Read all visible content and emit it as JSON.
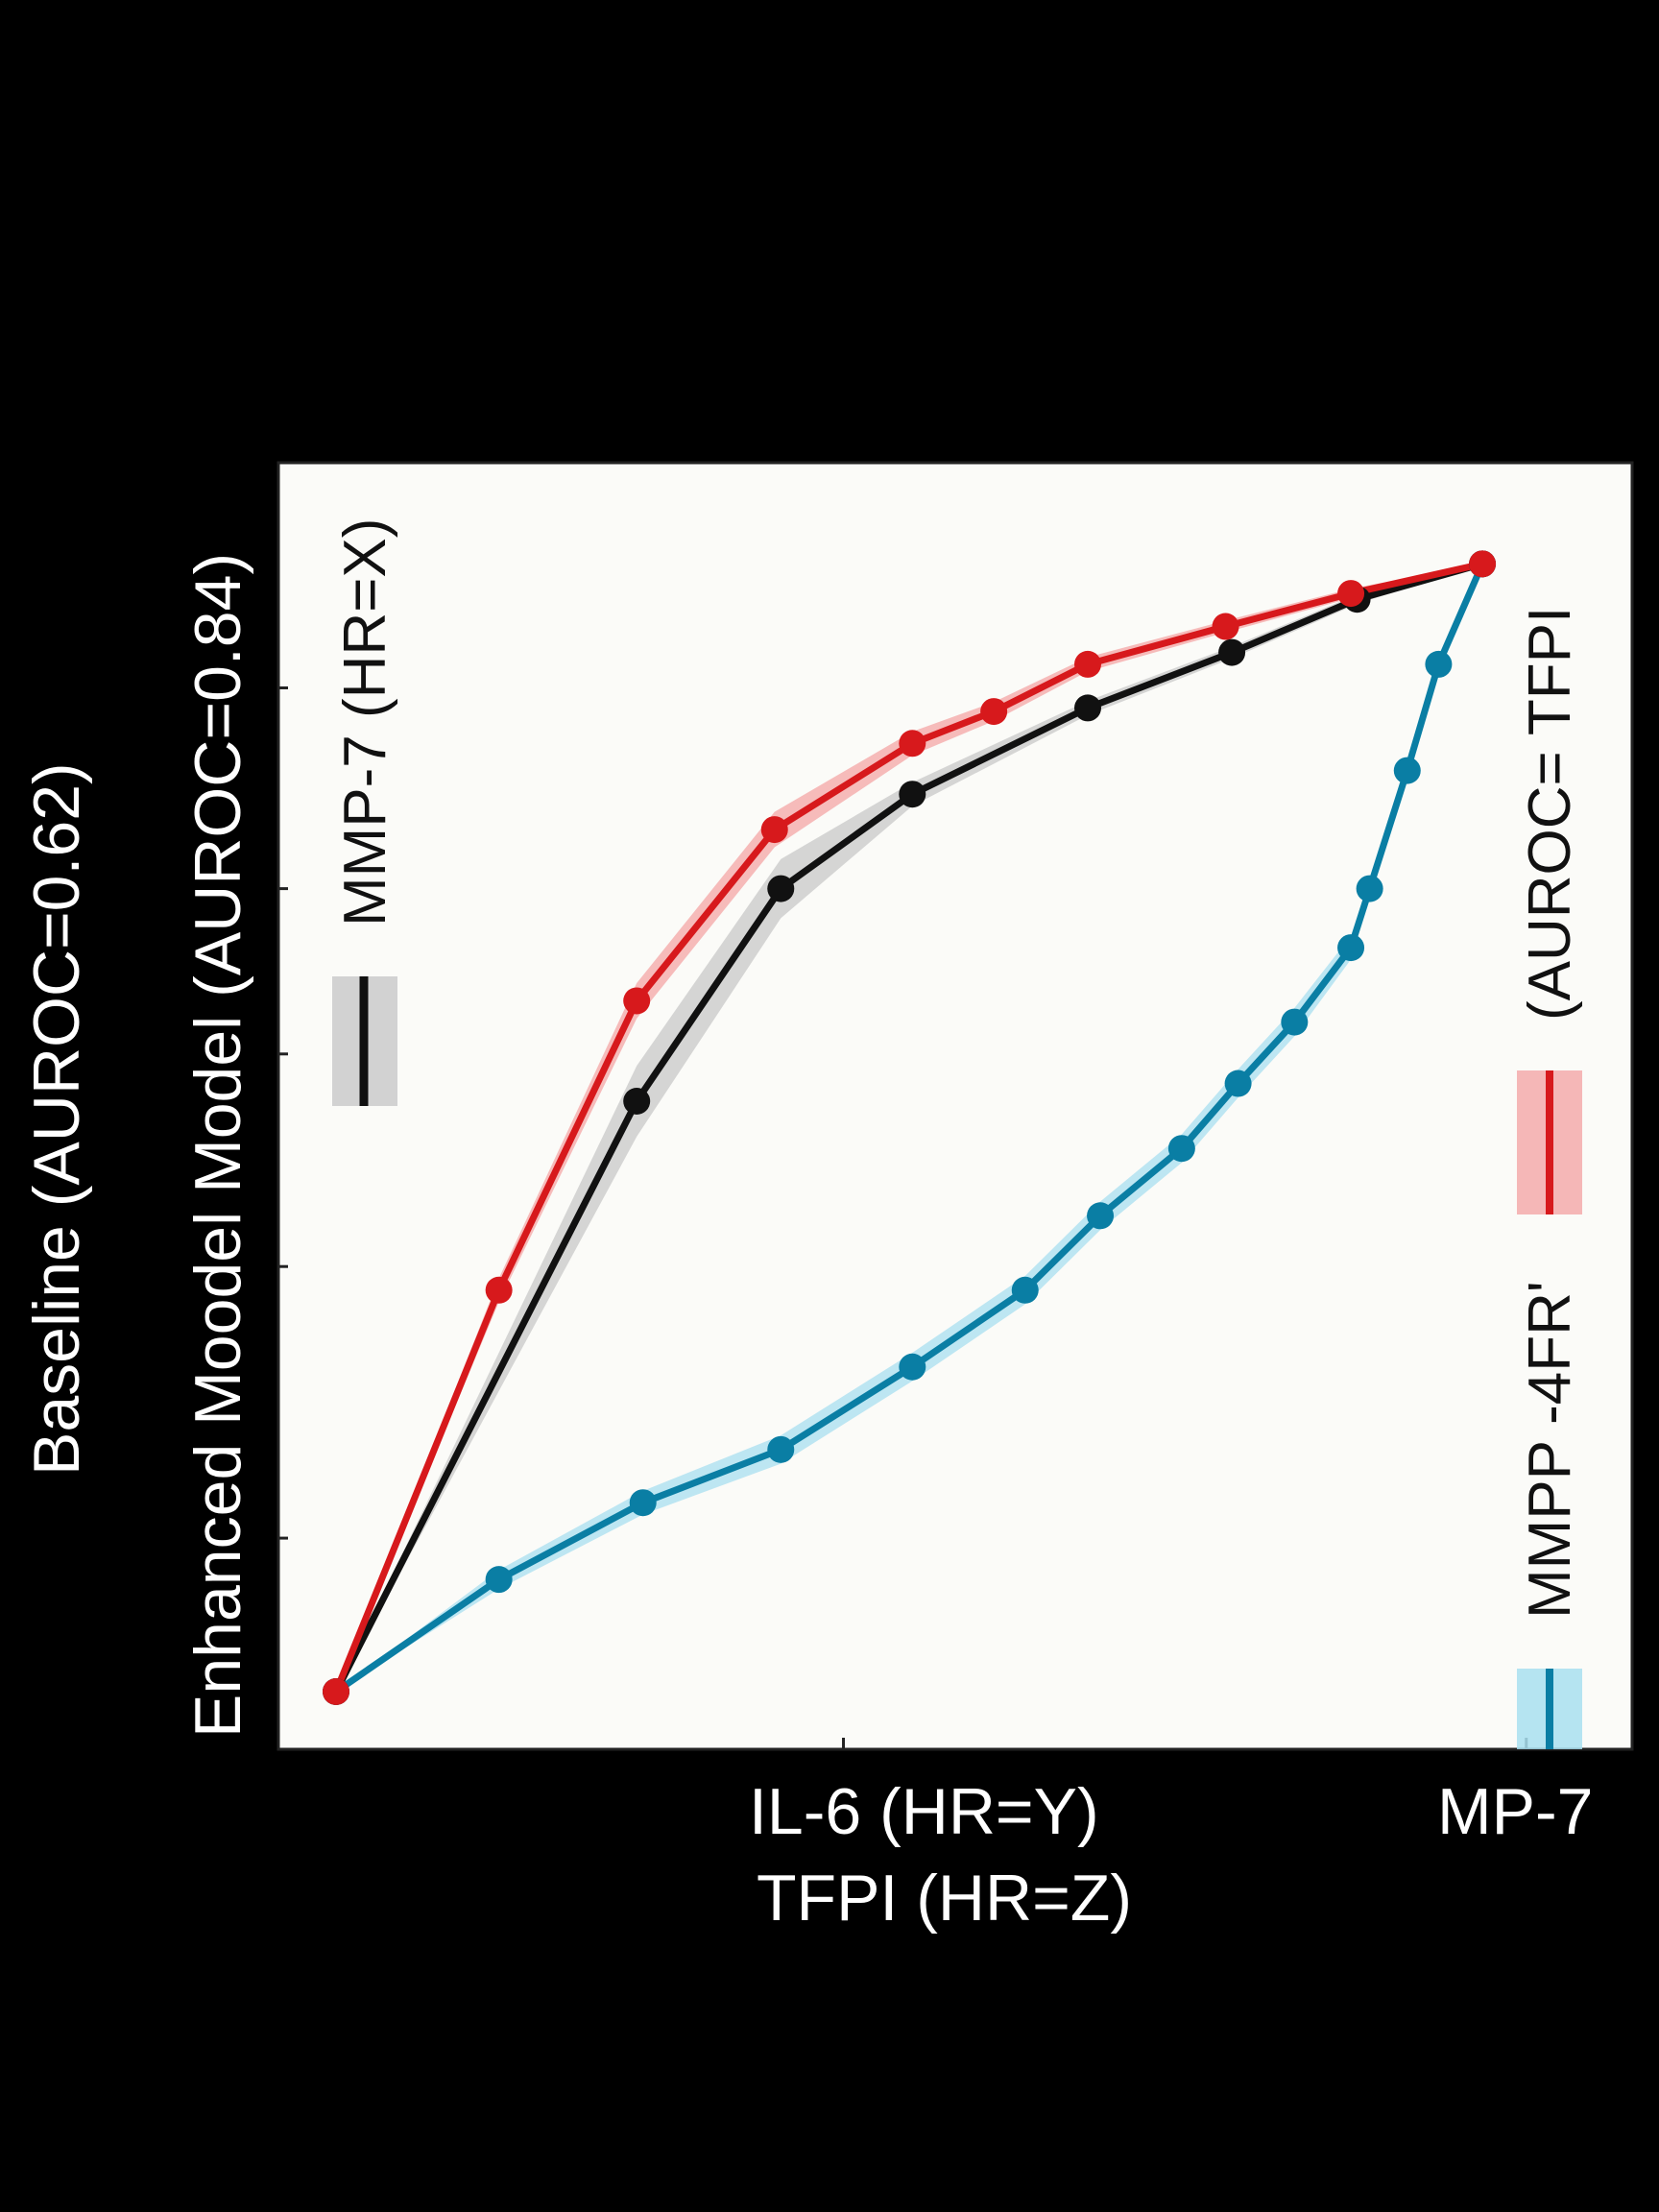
{
  "chart_data": {
    "type": "line",
    "title": "",
    "xlabel_lines": [
      "IL-6 (HR=Y)",
      "TFPI (HR=Z)"
    ],
    "ylabel_lines": [
      "Baseline (AUROC=0.62)",
      "Enhanced Moodel Model (AUROC=0.84)"
    ],
    "xlim": [
      0,
      1
    ],
    "ylim": [
      0,
      1
    ],
    "x_ticks": [
      {
        "value": 0.405,
        "label": ""
      },
      {
        "value": 0.95,
        "label": "MP-7"
      }
    ],
    "y_ticks": [
      0.13,
      0.36,
      0.54,
      0.68,
      0.85
    ],
    "grid": false,
    "legend": [
      {
        "label": "MMP-7 (HR=X)",
        "series": "black",
        "position": "top-left"
      },
      {
        "label": "(AUROC= TFPI",
        "series": "red",
        "position": "right"
      },
      {
        "label": "MMPP -4FR'",
        "series": "blue",
        "position": "bottom-right"
      }
    ],
    "series": [
      {
        "key": "red",
        "color": "#d7191c",
        "band_color": "#f4a6a6",
        "x": [
          0.0,
          0.13,
          0.24,
          0.35,
          0.46,
          0.525,
          0.6,
          0.71,
          0.81,
          0.915
        ],
        "y": [
          0.0,
          0.34,
          0.585,
          0.73,
          0.803,
          0.83,
          0.87,
          0.902,
          0.93,
          0.955
        ],
        "band": [
          0.0,
          0.01,
          0.015,
          0.015,
          0.01,
          0.008,
          0.006,
          0.005,
          0.004,
          0.0
        ]
      },
      {
        "key": "black",
        "color": "#111111",
        "band_color": "#c8c8c8",
        "x": [
          0.0,
          0.24,
          0.355,
          0.46,
          0.6,
          0.715,
          0.815,
          0.915
        ],
        "y": [
          0.0,
          0.5,
          0.68,
          0.76,
          0.833,
          0.88,
          0.925,
          0.955
        ],
        "band": [
          0.0,
          0.03,
          0.025,
          0.01,
          0.006,
          0.005,
          0.004,
          0.0
        ]
      },
      {
        "key": "blue",
        "color": "#0a7ea4",
        "band_color": "#a8dff0",
        "x": [
          0.0,
          0.13,
          0.245,
          0.355,
          0.46,
          0.55,
          0.61,
          0.675,
          0.72,
          0.765,
          0.81,
          0.825,
          0.855,
          0.88,
          0.915
        ],
        "y": [
          0.0,
          0.095,
          0.16,
          0.205,
          0.275,
          0.34,
          0.403,
          0.46,
          0.515,
          0.567,
          0.63,
          0.68,
          0.78,
          0.87,
          0.955
        ],
        "band": [
          0.0,
          0.008,
          0.01,
          0.012,
          0.012,
          0.012,
          0.012,
          0.012,
          0.012,
          0.012,
          0.01,
          0.008,
          0.006,
          0.005,
          0.0
        ]
      }
    ]
  }
}
